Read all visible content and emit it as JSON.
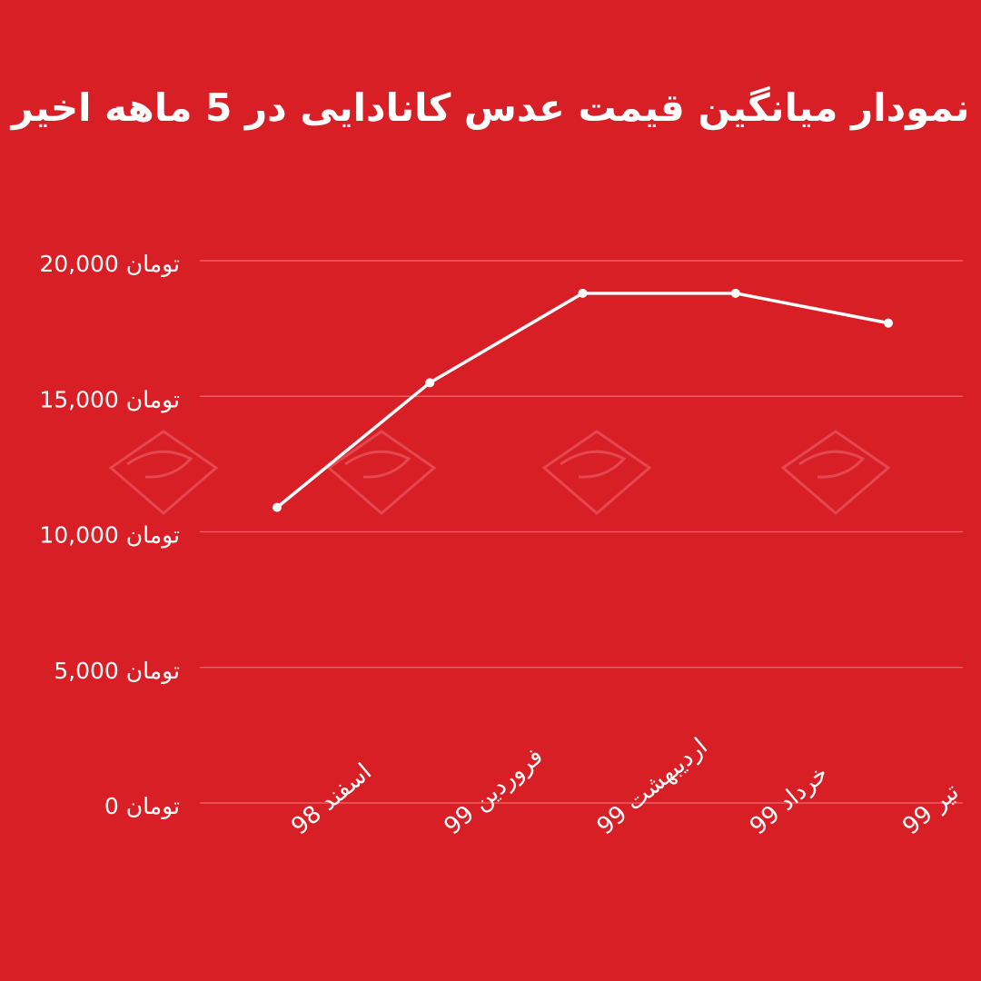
{
  "colors": {
    "background": "#d81f26",
    "line": "#ffffff",
    "grid": "#f06a70",
    "text": "#ffffff",
    "watermark": "#e8555b"
  },
  "chart_data": {
    "type": "line",
    "title": "نمودار میانگین قیمت عدس کانادایی در 5 ماهه اخیر",
    "categories": [
      "اسفند 98",
      "فروردین 99",
      "اردیبهشت 99",
      "خرداد 99",
      "تیر 99"
    ],
    "series": [
      {
        "values": [
          10900,
          15500,
          18800,
          18800,
          17700
        ]
      }
    ],
    "y_ticks": [
      0,
      5000,
      10000,
      15000,
      20000
    ],
    "y_tick_labels": [
      "تومان 0",
      "تومان 5,000",
      "تومان 10,000",
      "تومان 15,000",
      "تومان 20,000"
    ],
    "ylim": [
      0,
      20000
    ],
    "grid": true,
    "xlabel": "",
    "ylabel": ""
  }
}
